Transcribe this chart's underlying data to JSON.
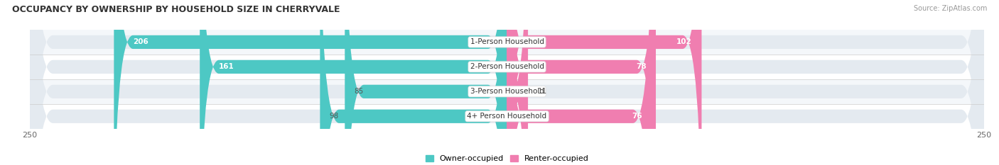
{
  "title": "OCCUPANCY BY OWNERSHIP BY HOUSEHOLD SIZE IN CHERRYVALE",
  "source": "Source: ZipAtlas.com",
  "categories": [
    "1-Person Household",
    "2-Person Household",
    "3-Person Household",
    "4+ Person Household"
  ],
  "owner_values": [
    206,
    161,
    85,
    98
  ],
  "renter_values": [
    102,
    78,
    11,
    76
  ],
  "owner_color": "#4DC8C4",
  "renter_color": "#F07EB0",
  "track_color": "#E4EAF0",
  "max_val": 250,
  "legend_owner": "Owner-occupied",
  "legend_renter": "Renter-occupied",
  "bar_height": 0.55,
  "row_alt_colors": [
    "#F4F7FA",
    "#FFFFFF",
    "#F4F7FA",
    "#FFFFFF"
  ]
}
